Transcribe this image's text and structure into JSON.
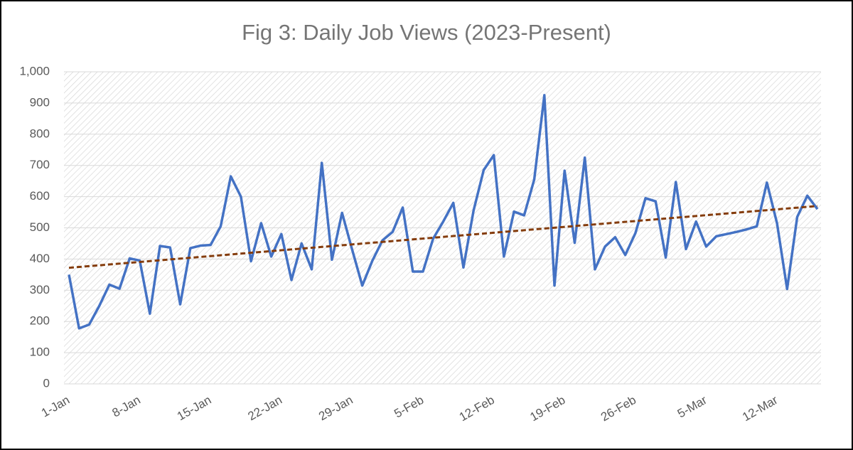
{
  "chart_data": {
    "type": "line",
    "title": "Fig 3: Daily Job Views (2023-Present)",
    "categories": [
      "1-Jan",
      null,
      null,
      null,
      null,
      null,
      null,
      "8-Jan",
      null,
      null,
      null,
      null,
      null,
      null,
      "15-Jan",
      null,
      null,
      null,
      null,
      null,
      null,
      "22-Jan",
      null,
      null,
      null,
      null,
      null,
      null,
      "29-Jan",
      null,
      null,
      null,
      null,
      null,
      null,
      "5-Feb",
      null,
      null,
      null,
      null,
      null,
      null,
      "12-Feb",
      null,
      null,
      null,
      null,
      null,
      null,
      "19-Feb",
      null,
      null,
      null,
      null,
      null,
      null,
      "26-Feb",
      null,
      null,
      null,
      null,
      null,
      null,
      "5-Mar",
      null,
      null,
      null,
      null,
      null,
      null,
      "12-Mar",
      null,
      null,
      null,
      null
    ],
    "series": [
      {
        "color": "#4472c4",
        "values": [
          350,
          178,
          190,
          250,
          318,
          305,
          402,
          395,
          225,
          442,
          437,
          255,
          435,
          443,
          445,
          505,
          665,
          600,
          393,
          515,
          408,
          480,
          333,
          450,
          367,
          708,
          398,
          548,
          430,
          315,
          395,
          460,
          487,
          565,
          360,
          360,
          465,
          520,
          580,
          373,
          555,
          685,
          733,
          408,
          552,
          540,
          655,
          925,
          315,
          683,
          452,
          725,
          367,
          440,
          470,
          413,
          483,
          595,
          585,
          405,
          647,
          432,
          520,
          440,
          473,
          480,
          487,
          495,
          505,
          645,
          515,
          304,
          535,
          603,
          560
        ]
      }
    ],
    "trendline": {
      "color": "#843c0c",
      "values": [
        372,
        570
      ]
    },
    "ylim": [
      0,
      1000
    ],
    "yticks": [
      0,
      100,
      200,
      300,
      400,
      500,
      600,
      700,
      800,
      900,
      {
        "value": 1000,
        "label": "1,000"
      }
    ],
    "grid": true
  }
}
